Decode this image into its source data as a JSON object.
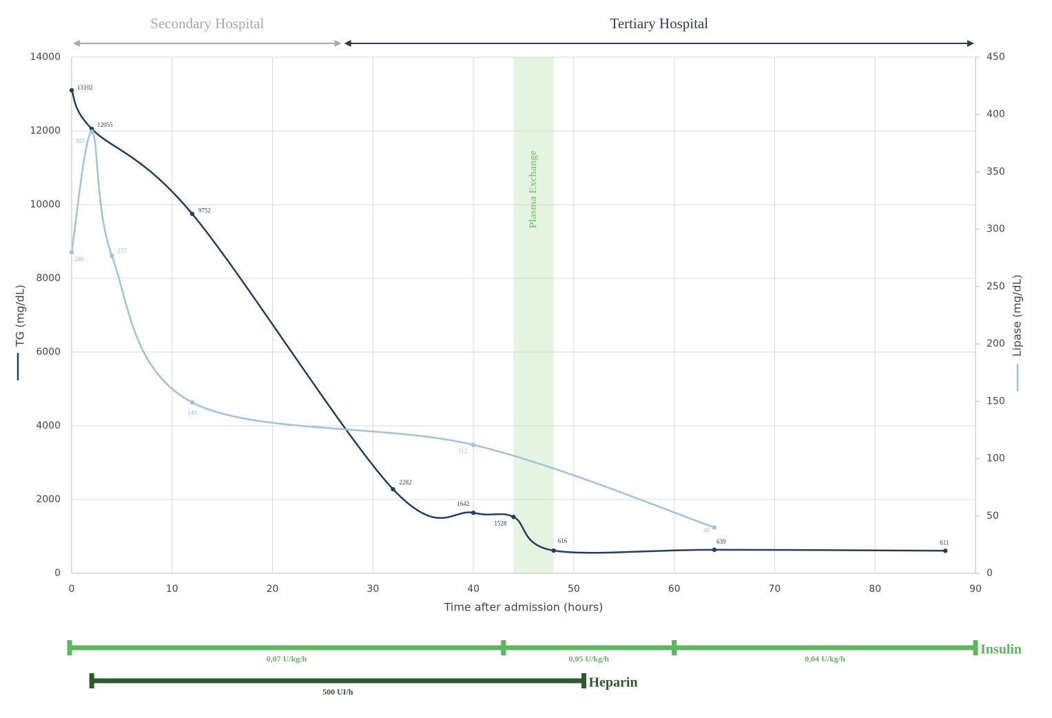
{
  "chart_data": {
    "type": "line",
    "xlabel": "Time after admission (hours)",
    "ylabel": "TG (mg/dL)",
    "y2label": "Lipase (mg/dL)",
    "xlim": [
      0,
      90
    ],
    "xticks": [
      0,
      10,
      20,
      30,
      40,
      50,
      60,
      70,
      80,
      90
    ],
    "ylim": [
      0,
      14000
    ],
    "yticks": [
      0,
      2000,
      4000,
      6000,
      8000,
      10000,
      12000,
      14000
    ],
    "y2lim": [
      0,
      450
    ],
    "y2ticks": [
      0,
      50,
      100,
      150,
      200,
      250,
      300,
      350,
      400,
      450
    ],
    "grid": true,
    "series": [
      {
        "color": "#1f3f63",
        "x": [
          0,
          2,
          12,
          32,
          40,
          44,
          48,
          64,
          87
        ],
        "values": [
          13102,
          12055,
          9752,
          2282,
          1642,
          1528,
          616,
          639,
          611
        ]
      },
      {
        "color": "#9cc3e0",
        "axis": "y2",
        "x": [
          0,
          2,
          4,
          12,
          40,
          64
        ],
        "values": [
          280,
          385,
          277,
          149,
          112,
          40
        ]
      }
    ],
    "regions": [
      {
        "label": "Secondary Hospital",
        "start": 0,
        "end": 27,
        "color": "#a8a8a8"
      },
      {
        "label": "Tertiary Hospital",
        "start": 27,
        "end": 90,
        "color": "#2c3e55"
      }
    ],
    "spans": [
      {
        "label": "Plasma Exchange",
        "start": 44,
        "end": 48,
        "color": "#e5f4e0",
        "text_color": "#8dcf82"
      }
    ],
    "treatments": [
      {
        "name": "Insulin",
        "color": "#5cb85c",
        "segments": [
          {
            "start": 0,
            "end": 43,
            "label": "0,07 U/kg/h"
          },
          {
            "start": 43,
            "end": 60,
            "label": "0,05 U/kg/h"
          },
          {
            "start": 60,
            "end": 90,
            "label": "0,04 U/kg/h"
          }
        ]
      },
      {
        "name": "Heparin",
        "color": "#2b5a2b",
        "segments": [
          {
            "start": 2,
            "end": 51,
            "label": "500 UI/h"
          }
        ]
      }
    ]
  }
}
